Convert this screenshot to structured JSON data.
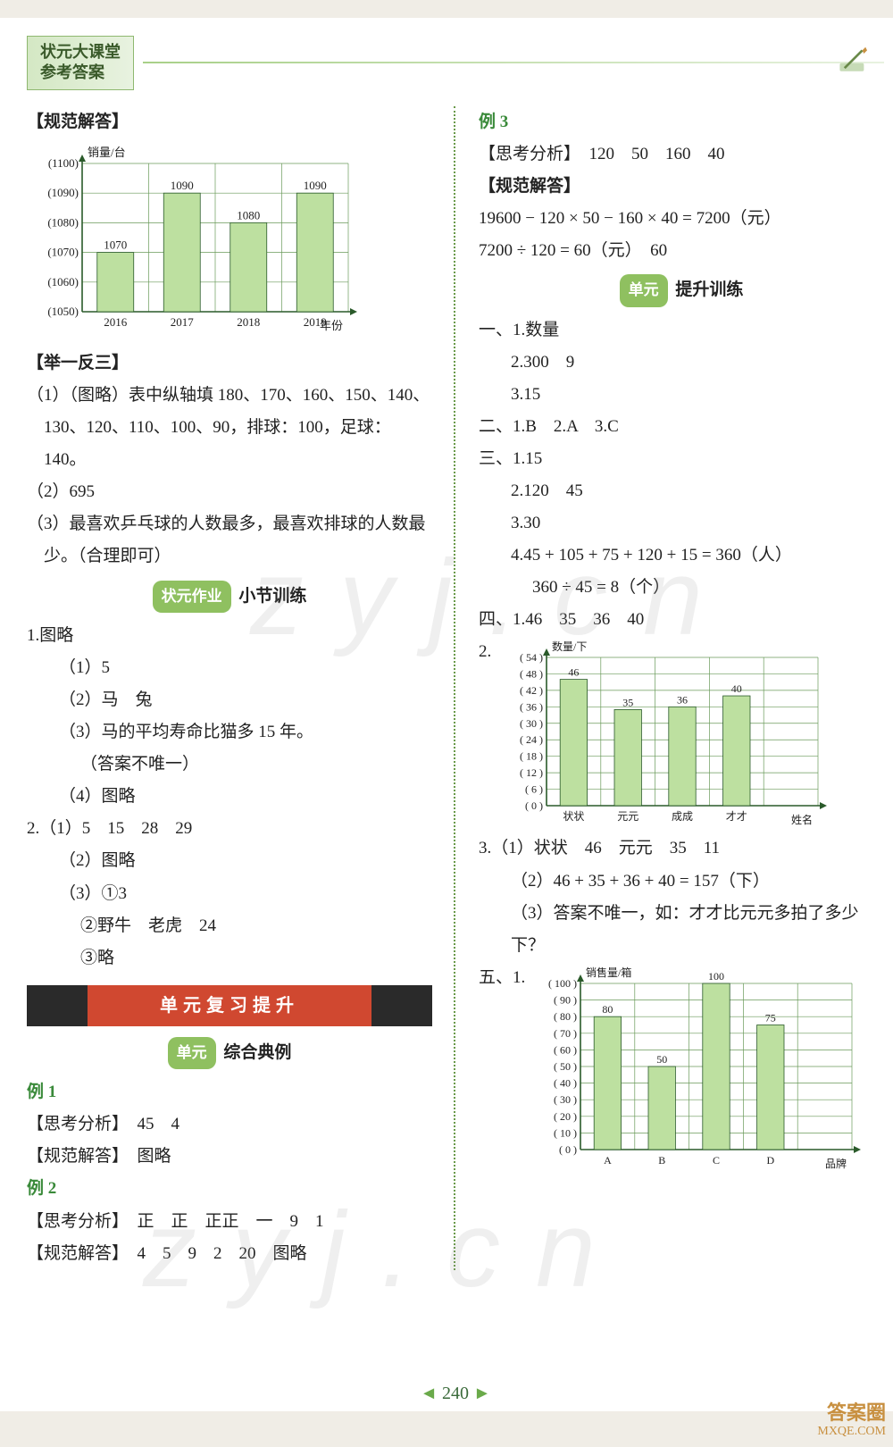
{
  "header": {
    "line1": "状元大课堂",
    "line2": "参考答案"
  },
  "pageNumber": "240",
  "watermarkText": "zyj.cn",
  "corner": {
    "line1": "答案圈",
    "line2": "MXQE.COM"
  },
  "left": {
    "s1_title": "【规范解答】",
    "chart1": {
      "type": "bar",
      "ylabel_positions": [
        "(1100)",
        "(1090)",
        "(1080)",
        "(1070)",
        "(1060)",
        "(1050)"
      ],
      "ylim": [
        1050,
        1100
      ],
      "ytick_step": 10,
      "categories": [
        "2016",
        "2017",
        "2018",
        "2019"
      ],
      "values": [
        1070,
        1090,
        1080,
        1090
      ],
      "bar_color": "#bde0a0",
      "grid_color": "#6a9a5a",
      "axis_color": "#2a5a2a",
      "background_color": "#ffffff",
      "axis_label_y": "销量/台",
      "axis_label_x": "年份",
      "label_fontsize": 13,
      "value_fontsize": 13,
      "bar_width": 0.55
    },
    "s2_title": "【举一反三】",
    "s2_item1": "（1）（图略）表中纵轴填 180、170、160、150、140、130、120、110、100、90，排球：100，足球：140。",
    "s2_item2": "（2）695",
    "s2_item3": "（3）最喜欢乒乓球的人数最多，最喜欢排球的人数最少。（合理即可）",
    "badge1": {
      "pill": "状元作业",
      "text": "小节训练"
    },
    "q1_head": "1.图略",
    "q1_1": "（1）5",
    "q1_2": "（2）马　兔",
    "q1_3": "（3）马的平均寿命比猫多 15 年。",
    "q1_3b": "（答案不唯一）",
    "q1_4": "（4）图略",
    "q2_head": "2.（1）5　15　28　29",
    "q2_2": "（2）图略",
    "q2_3": "（3）①3",
    "q2_3b": "②野牛　老虎　24",
    "q2_3c": "③略",
    "band": "单元复习提升",
    "badge2": {
      "pill": "单元",
      "text": "综合典例"
    },
    "ex1_title": "例 1",
    "ex1_think": "【思考分析】　45　4",
    "ex1_ans": "【规范解答】　图略",
    "ex2_title": "例 2",
    "ex2_think": "【思考分析】　正　正　正正　一　9　1",
    "ex2_ans": "【规范解答】　4　5　9　2　20　图略"
  },
  "right": {
    "ex3_title": "例 3",
    "ex3_think": "【思考分析】　120　50　160　40",
    "ex3_ans_title": "【规范解答】",
    "ex3_calc1": "19600 − 120 × 50 − 160 × 40 = 7200（元）",
    "ex3_calc2": "7200 ÷ 120 = 60（元）　60",
    "badge3": {
      "pill": "单元",
      "text": "提升训练"
    },
    "sec1_head": "一、1.数量",
    "sec1_2": "2.300　9",
    "sec1_3": "3.15",
    "sec2": "二、1.B　2.A　3.C",
    "sec3_1": "三、1.15",
    "sec3_2": "2.120　45",
    "sec3_3": "3.30",
    "sec3_4": "4.45 + 105 + 75 + 120 + 15 = 360（人）",
    "sec3_4b": "360 ÷ 45 = 8（个）",
    "sec4_1": "四、1.46　35　36　40",
    "sec4_2": "2.",
    "chart2": {
      "type": "bar",
      "axis_label_y": "数量/下",
      "axis_label_x": "姓名",
      "ylabel_positions": [
        "54",
        "48",
        "42",
        "36",
        "30",
        "24",
        "18",
        "12",
        "6",
        "0"
      ],
      "ylim": [
        0,
        54
      ],
      "ytick_step": 6,
      "categories": [
        "状状",
        "元元",
        "成成",
        "才才"
      ],
      "values": [
        46,
        35,
        36,
        40
      ],
      "bar_color": "#bde0a0",
      "grid_color": "#6a9a5a",
      "axis_color": "#2a5a2a",
      "background_color": "#ffffff",
      "label_fontsize": 12,
      "value_fontsize": 12,
      "bar_width": 0.5
    },
    "sec4_3_1": "3.（1）状状　46　元元　35　11",
    "sec4_3_2": "（2）46 + 35 + 36 + 40 = 157（下）",
    "sec4_3_3": "（3）答案不唯一，如：才才比元元多拍了多少下？",
    "sec5_1": "五、1.",
    "chart3": {
      "type": "bar",
      "axis_label_y": "销售量/箱",
      "axis_label_x": "品牌",
      "ylabel_positions": [
        "100",
        "90",
        "80",
        "70",
        "60",
        "50",
        "40",
        "30",
        "20",
        "10",
        "0"
      ],
      "ylim": [
        0,
        100
      ],
      "ytick_step": 10,
      "categories": [
        "A",
        "B",
        "C",
        "D"
      ],
      "values": [
        80,
        50,
        100,
        75
      ],
      "bar_color": "#bde0a0",
      "grid_color": "#6a9a5a",
      "axis_color": "#2a5a2a",
      "background_color": "#ffffff",
      "label_fontsize": 12,
      "value_fontsize": 12,
      "bar_width": 0.5
    }
  }
}
